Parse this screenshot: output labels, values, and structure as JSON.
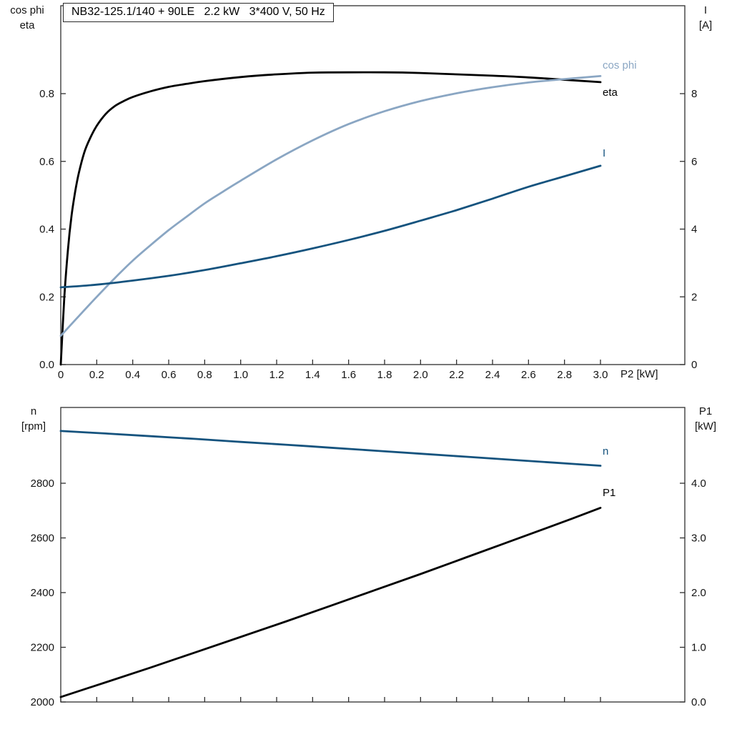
{
  "chart_data": [
    {
      "type": "line",
      "title": "NB32-125.1/140 + 90LE   2.2 kW   3*400 V, 50 Hz",
      "x_axis": {
        "label": "P2 [kW]",
        "tick_values": [
          0,
          0.2,
          0.4,
          0.6,
          0.8,
          1.0,
          1.2,
          1.4,
          1.6,
          1.8,
          2.0,
          2.2,
          2.4,
          2.6,
          2.8,
          3.0
        ],
        "tick_labels": [
          "0",
          "0.2",
          "0.4",
          "0.6",
          "0.8",
          "1.0",
          "1.2",
          "1.4",
          "1.6",
          "1.8",
          "2.0",
          "2.2",
          "2.4",
          "2.6",
          "2.8",
          "3.0"
        ],
        "range": [
          0,
          3.47
        ]
      },
      "left_axis": {
        "title_lines": [
          "cos phi",
          "eta"
        ],
        "tick_values": [
          0,
          0.2,
          0.4,
          0.6,
          0.8
        ],
        "tick_labels": [
          "0.0",
          "0.2",
          "0.4",
          "0.6",
          "0.8"
        ],
        "range": [
          0,
          1.06
        ]
      },
      "right_axis": {
        "title_lines": [
          "I",
          "[A]"
        ],
        "tick_values": [
          0,
          2,
          4,
          6,
          8
        ],
        "tick_labels": [
          "0",
          "2",
          "4",
          "6",
          "8"
        ],
        "range": [
          0,
          10.6
        ]
      },
      "grid": false,
      "series": [
        {
          "name": "eta",
          "label": "eta",
          "axis": "left",
          "color": "#000000",
          "points": [
            [
              0,
              0
            ],
            [
              0.02,
              0.2
            ],
            [
              0.04,
              0.34
            ],
            [
              0.06,
              0.44
            ],
            [
              0.08,
              0.51
            ],
            [
              0.1,
              0.565
            ],
            [
              0.13,
              0.625
            ],
            [
              0.16,
              0.665
            ],
            [
              0.2,
              0.705
            ],
            [
              0.25,
              0.74
            ],
            [
              0.3,
              0.763
            ],
            [
              0.35,
              0.778
            ],
            [
              0.4,
              0.79
            ],
            [
              0.5,
              0.807
            ],
            [
              0.6,
              0.82
            ],
            [
              0.7,
              0.829
            ],
            [
              0.8,
              0.837
            ],
            [
              1.0,
              0.849
            ],
            [
              1.2,
              0.857
            ],
            [
              1.4,
              0.862
            ],
            [
              1.6,
              0.863
            ],
            [
              1.8,
              0.863
            ],
            [
              2.0,
              0.861
            ],
            [
              2.2,
              0.857
            ],
            [
              2.4,
              0.853
            ],
            [
              2.6,
              0.848
            ],
            [
              2.8,
              0.841
            ],
            [
              3.0,
              0.834
            ]
          ]
        },
        {
          "name": "cos-phi",
          "label": "cos phi",
          "axis": "left",
          "color": "#8aa6c3",
          "points": [
            [
              0,
              0.085
            ],
            [
              0.1,
              0.143
            ],
            [
              0.2,
              0.2
            ],
            [
              0.3,
              0.255
            ],
            [
              0.4,
              0.307
            ],
            [
              0.5,
              0.353
            ],
            [
              0.6,
              0.397
            ],
            [
              0.7,
              0.437
            ],
            [
              0.8,
              0.476
            ],
            [
              0.9,
              0.51
            ],
            [
              1.0,
              0.543
            ],
            [
              1.2,
              0.606
            ],
            [
              1.4,
              0.662
            ],
            [
              1.6,
              0.71
            ],
            [
              1.8,
              0.748
            ],
            [
              2.0,
              0.778
            ],
            [
              2.2,
              0.801
            ],
            [
              2.4,
              0.819
            ],
            [
              2.6,
              0.833
            ],
            [
              2.8,
              0.843
            ],
            [
              3.0,
              0.852
            ]
          ]
        },
        {
          "name": "current",
          "label": "I",
          "axis": "right",
          "color": "#15537e",
          "points": [
            [
              0,
              2.28
            ],
            [
              0.2,
              2.36
            ],
            [
              0.4,
              2.48
            ],
            [
              0.6,
              2.62
            ],
            [
              0.8,
              2.79
            ],
            [
              1.0,
              2.99
            ],
            [
              1.2,
              3.2
            ],
            [
              1.4,
              3.43
            ],
            [
              1.6,
              3.68
            ],
            [
              1.8,
              3.95
            ],
            [
              2.0,
              4.25
            ],
            [
              2.2,
              4.56
            ],
            [
              2.4,
              4.9
            ],
            [
              2.6,
              5.25
            ],
            [
              2.8,
              5.56
            ],
            [
              3.0,
              5.87
            ]
          ]
        }
      ]
    },
    {
      "type": "line",
      "title": "",
      "x_axis": {
        "label": "",
        "tick_values": [
          0,
          0.2,
          0.4,
          0.6,
          0.8,
          1.0,
          1.2,
          1.4,
          1.6,
          1.8,
          2.0,
          2.2,
          2.4,
          2.6,
          2.8,
          3.0
        ],
        "tick_labels": [
          "",
          "",
          "",
          "",
          "",
          "",
          "",
          "",
          "",
          "",
          "",
          "",
          "",
          "",
          "",
          ""
        ],
        "range": [
          0,
          3.47
        ]
      },
      "left_axis": {
        "title_lines": [
          "n",
          "[rpm]"
        ],
        "tick_values": [
          2000,
          2200,
          2400,
          2600,
          2800
        ],
        "tick_labels": [
          "2000",
          "2200",
          "2400",
          "2600",
          "2800"
        ],
        "range": [
          2000,
          3077
        ]
      },
      "right_axis": {
        "title_lines": [
          "P1",
          "[kW]"
        ],
        "tick_values": [
          0,
          1,
          2,
          3,
          4
        ],
        "tick_labels": [
          "0.0",
          "1.0",
          "2.0",
          "3.0",
          "4.0"
        ],
        "range": [
          0,
          5.39
        ]
      },
      "grid": false,
      "series": [
        {
          "name": "n",
          "label": "n",
          "axis": "left",
          "color": "#15537e",
          "points": [
            [
              0,
              2991
            ],
            [
              0.25,
              2982
            ],
            [
              0.5,
              2972
            ],
            [
              0.75,
              2962
            ],
            [
              1.0,
              2951
            ],
            [
              1.25,
              2941
            ],
            [
              1.5,
              2930
            ],
            [
              1.75,
              2919
            ],
            [
              2.0,
              2908
            ],
            [
              2.25,
              2897
            ],
            [
              2.5,
              2886
            ],
            [
              2.75,
              2875
            ],
            [
              3.0,
              2864
            ]
          ]
        },
        {
          "name": "p1",
          "label": "P1",
          "axis": "right",
          "color": "#000000",
          "points": [
            [
              0,
              0.09
            ],
            [
              0.25,
              0.36
            ],
            [
              0.5,
              0.63
            ],
            [
              0.75,
              0.91
            ],
            [
              1.0,
              1.19
            ],
            [
              1.25,
              1.47
            ],
            [
              1.5,
              1.76
            ],
            [
              1.75,
              2.05
            ],
            [
              2.0,
              2.34
            ],
            [
              2.25,
              2.64
            ],
            [
              2.5,
              2.94
            ],
            [
              2.75,
              3.24
            ],
            [
              3.0,
              3.55
            ]
          ]
        }
      ]
    }
  ]
}
